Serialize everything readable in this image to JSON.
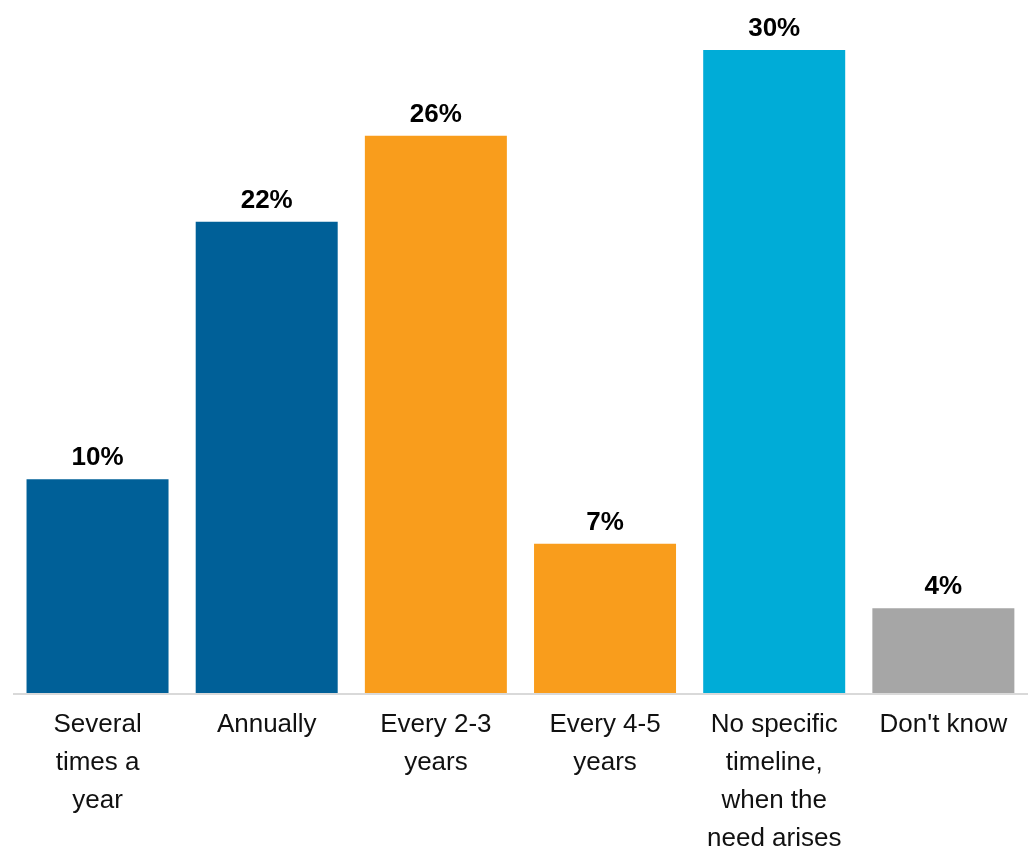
{
  "chart_data": {
    "type": "bar",
    "categories": [
      "Several times a year",
      "Annually",
      "Every 2-3 years",
      "Every 4-5 years",
      "No specific timeline, when the need arises",
      "Don't know"
    ],
    "values": [
      10,
      22,
      26,
      7,
      30,
      4
    ],
    "colors": [
      "#006098",
      "#006098",
      "#f99d1c",
      "#f99d1c",
      "#00acd7",
      "#a6a6a6"
    ],
    "data_labels": true,
    "value_labels": [
      "10%",
      "22%",
      "26%",
      "7%",
      "30%",
      "4%"
    ]
  }
}
